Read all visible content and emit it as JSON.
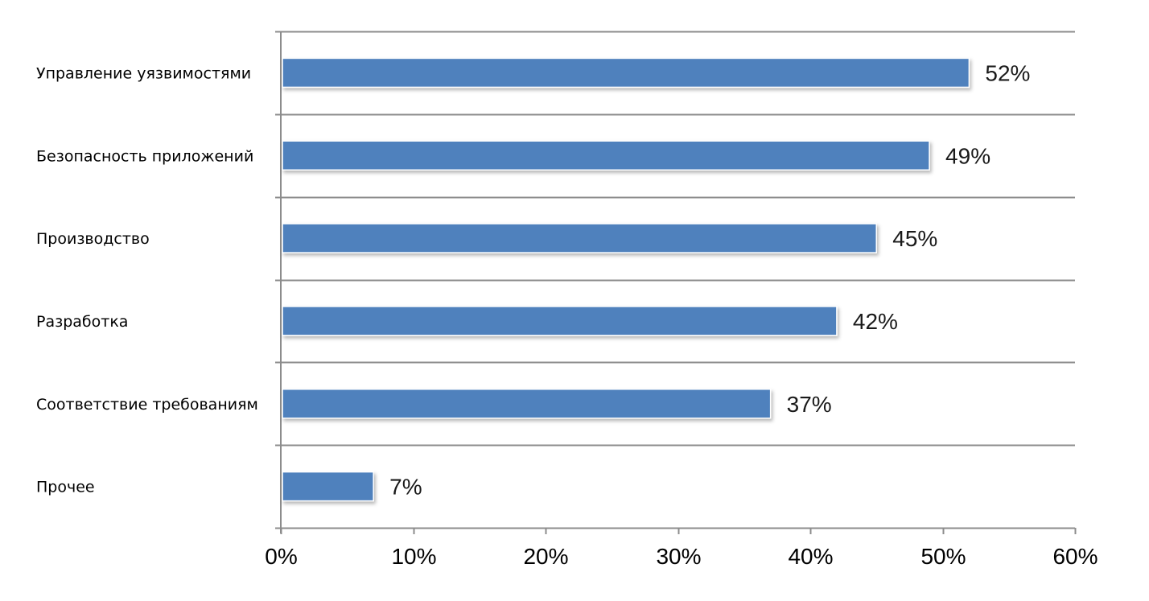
{
  "chart_data": {
    "type": "bar",
    "orientation": "horizontal",
    "categories": [
      "Управление уязвимостями",
      "Безопасность приложений",
      "Производство",
      "Разработка",
      "Соответствие требованиям",
      "Прочее"
    ],
    "values": [
      52,
      49,
      45,
      42,
      37,
      7
    ],
    "data_labels": [
      "52%",
      "49%",
      "45%",
      "42%",
      "37%",
      "7%"
    ],
    "xlim": [
      0,
      60
    ],
    "x_ticks": [
      0,
      10,
      20,
      30,
      40,
      50,
      60
    ],
    "x_tick_labels": [
      "0%",
      "10%",
      "20%",
      "30%",
      "40%",
      "50%",
      "60%"
    ],
    "grid": "horizontal",
    "legend": "none",
    "colors": {
      "bar": "#4f81bd",
      "grid": "#8c8c8c",
      "bar_edge": "#ffffff"
    }
  }
}
